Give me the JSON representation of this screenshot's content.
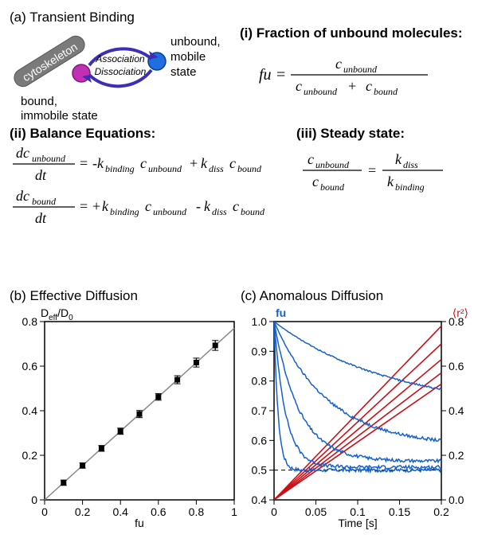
{
  "panelA": {
    "label": "(a) Transient Binding",
    "diagram": {
      "cytoskeleton_label": "cytoskeleton",
      "cytoskeleton_color": "#7a7a7a",
      "assoc_label": "Association",
      "dissoc_label": "Dissociation",
      "arrow_color": "#3d2fb5",
      "bound_circle_color": "#c22fb5",
      "unbound_circle_color": "#1f6fe0",
      "unbound_label1": "unbound,",
      "unbound_label2": "mobile",
      "unbound_label3": "state",
      "bound_label1": "bound,",
      "bound_label2": "immobile state"
    },
    "eq_i_title": "(i) Fraction of unbound molecules:",
    "eq_i": "fu = c_unbound / (c_unbound + c_bound)",
    "eq_ii_title": "(ii) Balance Equations:",
    "eq_ii_1": "dc_unbound/dt = -k_binding c_unbound + k_diss c_bound",
    "eq_ii_2": "dc_bound/dt = +k_binding c_unbound - k_diss c_bound",
    "eq_iii_title": "(iii) Steady state:",
    "eq_iii": "c_unbound / c_bound = k_diss / k_binding"
  },
  "panelB": {
    "label": "(b) Effective Diffusion",
    "type": "scatter-line",
    "ylabel_html": "D<sub>eff</sub>/D<sub>0</sub>",
    "xlabel": "fu",
    "xlim": [
      0,
      1
    ],
    "ylim": [
      0,
      0.8
    ],
    "xticks": [
      0,
      0.2,
      0.4,
      0.6,
      0.8,
      1
    ],
    "yticks": [
      0,
      0.2,
      0.4,
      0.6,
      0.8
    ],
    "line_color": "#888888",
    "line_start": [
      0,
      0
    ],
    "line_end": [
      1,
      0.77
    ],
    "points": [
      {
        "x": 0.1,
        "y": 0.077,
        "err": 0.012
      },
      {
        "x": 0.2,
        "y": 0.154,
        "err": 0.012
      },
      {
        "x": 0.3,
        "y": 0.231,
        "err": 0.013
      },
      {
        "x": 0.4,
        "y": 0.308,
        "err": 0.014
      },
      {
        "x": 0.5,
        "y": 0.385,
        "err": 0.016
      },
      {
        "x": 0.6,
        "y": 0.462,
        "err": 0.015
      },
      {
        "x": 0.7,
        "y": 0.539,
        "err": 0.018
      },
      {
        "x": 0.8,
        "y": 0.616,
        "err": 0.02
      },
      {
        "x": 0.9,
        "y": 0.693,
        "err": 0.022
      }
    ],
    "marker_color": "#000000",
    "background": "#ffffff",
    "axis_color": "#000000",
    "fontsize": 14
  },
  "panelC": {
    "label": "(c) Anomalous Diffusion",
    "type": "line",
    "xlabel": "Time [s]",
    "left_label": "fu",
    "right_label_html": "⟨r²⟩",
    "left_color": "#1560d0",
    "right_color": "#c81018",
    "xlim": [
      0,
      0.2
    ],
    "left_ylim": [
      0.4,
      1.0
    ],
    "right_ylim": [
      0.0,
      0.8
    ],
    "xticks": [
      0,
      0.05,
      0.1,
      0.15,
      0.2
    ],
    "left_yticks": [
      0.4,
      0.5,
      0.6,
      0.7,
      0.8,
      0.9,
      1.0
    ],
    "right_yticks": [
      0.0,
      0.2,
      0.4,
      0.6,
      0.8
    ],
    "dashed_y_left": 0.5,
    "blue_curves": [
      {
        "tau": 0.005,
        "yinf": 0.5,
        "noise": 0.012
      },
      {
        "tau": 0.014,
        "yinf": 0.51,
        "noise": 0.012
      },
      {
        "tau": 0.03,
        "yinf": 0.53,
        "noise": 0.011
      },
      {
        "tau": 0.065,
        "yinf": 0.58,
        "noise": 0.01
      },
      {
        "tau": 0.14,
        "yinf": 0.7,
        "noise": 0.006
      }
    ],
    "red_curves": [
      {
        "slope": 3.9
      },
      {
        "slope": 3.5
      },
      {
        "slope": 3.15
      },
      {
        "slope": 2.85
      },
      {
        "slope": 2.6
      }
    ],
    "blue_stroke": "#1560d0",
    "red_stroke": "#c81018",
    "axis_color": "#000000",
    "background": "#ffffff",
    "fontsize": 14
  }
}
